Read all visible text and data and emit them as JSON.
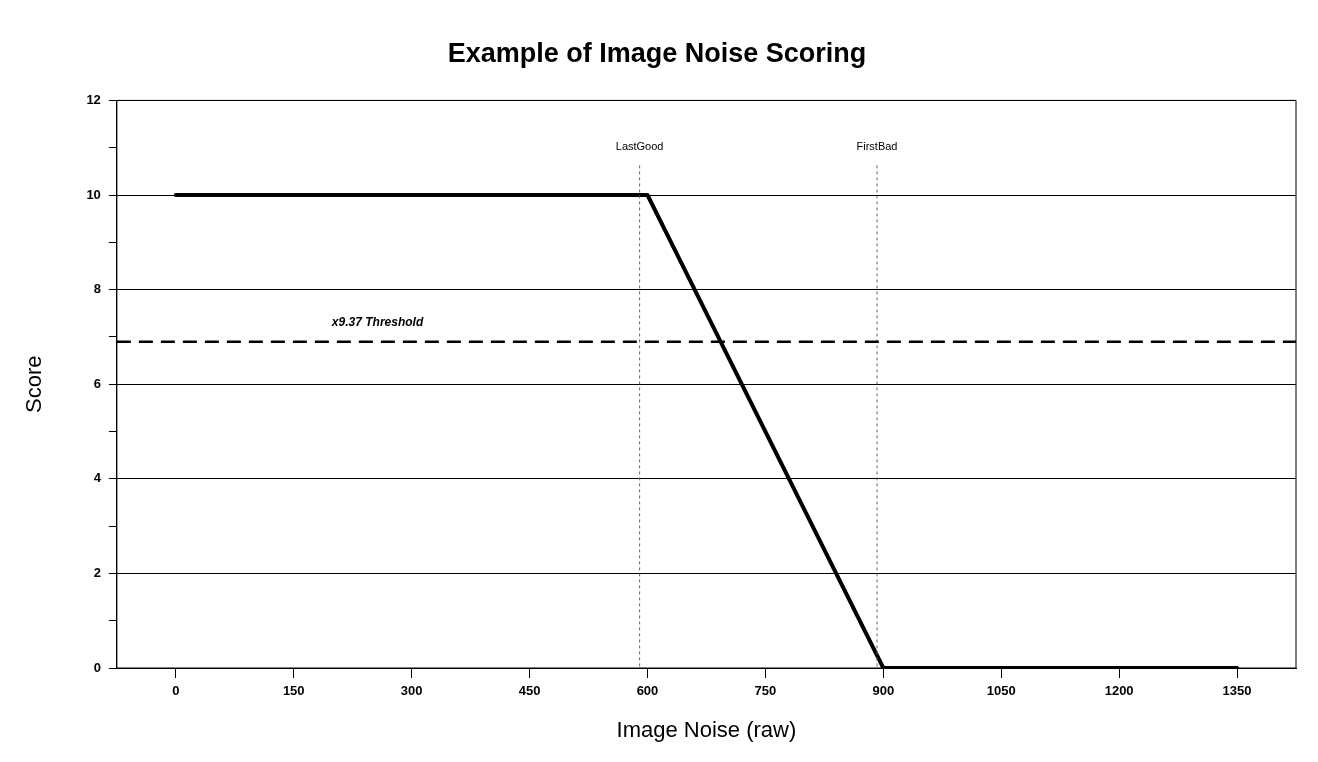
{
  "chart_data": {
    "type": "line",
    "title": "Example of Image Noise Scoring",
    "xlabel": "Image Noise (raw)",
    "ylabel": "Score",
    "x": [
      0,
      600,
      900,
      1350
    ],
    "series": [
      {
        "color": "#000000",
        "values": [
          10,
          10,
          0,
          0
        ]
      }
    ],
    "xlim": [
      -75,
      1425
    ],
    "xticks": [
      0,
      150,
      300,
      450,
      600,
      750,
      900,
      1050,
      1200,
      1350
    ],
    "ylim": [
      0,
      12
    ],
    "yticks": [
      0,
      {
        "value": 1,
        "label": null
      },
      2,
      {
        "value": 3,
        "label": null
      },
      4,
      {
        "value": 5,
        "label": null
      },
      6,
      {
        "value": 7,
        "label": null
      },
      8,
      {
        "value": 9,
        "label": null
      },
      10,
      {
        "value": 11,
        "label": null
      },
      12
    ],
    "grid": "y",
    "legend": false,
    "marker": "none",
    "line_style": "solid",
    "ref_lines": [
      {
        "axis": "x",
        "value": 590,
        "label": "LastGood",
        "color": "#666666",
        "line_style": "dotted"
      },
      {
        "axis": "x",
        "value": 892,
        "label": "FirstBad",
        "color": "#666666",
        "line_style": "dotted"
      },
      {
        "axis": "y",
        "value": 6.9,
        "label": "x9.37 Threshold",
        "color": "#000000",
        "line_style": "dashed"
      }
    ]
  }
}
